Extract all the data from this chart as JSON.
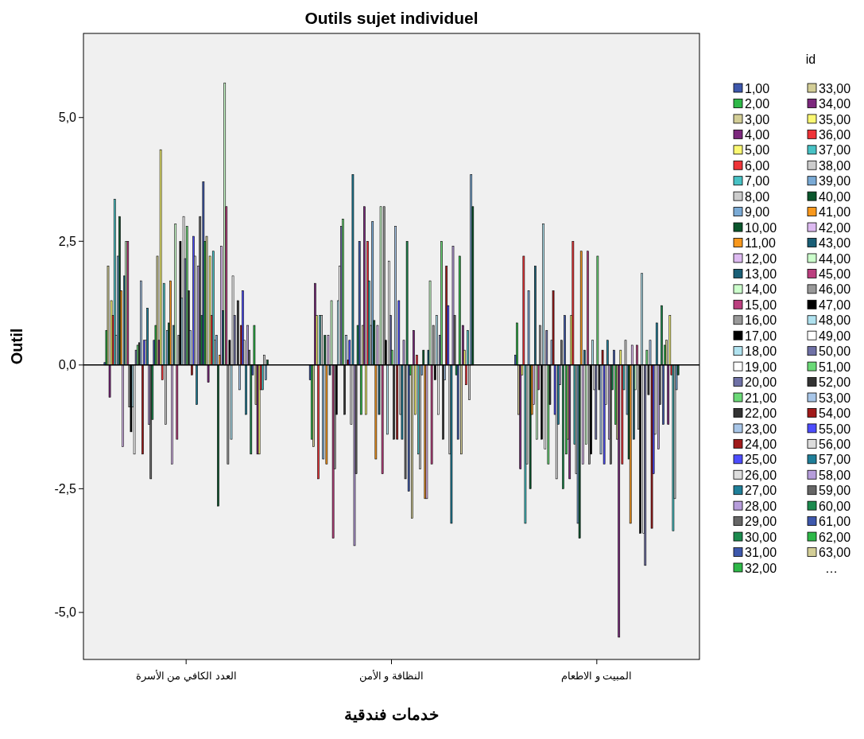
{
  "chart_data": {
    "type": "bar",
    "title": "Outils sujet individuel",
    "xlabel": "خدمات فندقية",
    "ylabel": "Outil",
    "legend_title": "id",
    "legend": "right",
    "annotations": [
      "…"
    ],
    "categories": [
      "العدد الكافي من الأسرة",
      "النظافة و الأمن",
      "المبيت و الاطعام"
    ],
    "ylim": [
      -5.95,
      6.7
    ],
    "yticks": [
      {
        "value": -5,
        "label": "-5,0"
      },
      {
        "value": -2.5,
        "label": "-2,5"
      },
      {
        "value": 0,
        "label": "0,0"
      },
      {
        "value": 2.5,
        "label": "2,5"
      },
      {
        "value": 5,
        "label": "5,0"
      }
    ],
    "series": [
      {
        "name": "1,00",
        "color": "#3e58ac",
        "values": [
          0.05,
          -0.3,
          0.2
        ]
      },
      {
        "name": "2,00",
        "color": "#2eb848",
        "values": [
          0.7,
          -1.5,
          0.85
        ]
      },
      {
        "name": "3,00",
        "color": "#d3ce97",
        "values": [
          2.0,
          -1.65,
          -1.0
        ]
      },
      {
        "name": "4,00",
        "color": "#7c287d",
        "values": [
          -0.65,
          1.65,
          -2.1
        ]
      },
      {
        "name": "5,00",
        "color": "#fbf873",
        "values": [
          1.3,
          1.0,
          -0.2
        ]
      },
      {
        "name": "6,00",
        "color": "#ef3338",
        "values": [
          1.0,
          -2.3,
          2.2
        ]
      },
      {
        "name": "7,00",
        "color": "#48c2c5",
        "values": [
          3.35,
          1.0,
          -3.2
        ]
      },
      {
        "name": "8,00",
        "color": "#cccccc",
        "values": [
          0.6,
          1.0,
          -2.0
        ]
      },
      {
        "name": "9,00",
        "color": "#7aaad5",
        "values": [
          2.2,
          -1.9,
          1.5
        ]
      },
      {
        "name": "10,00",
        "color": "#0a562c",
        "values": [
          3.0,
          0.6,
          -2.5
        ]
      },
      {
        "name": "11,00",
        "color": "#f8981d",
        "values": [
          1.5,
          -2.0,
          -1.0
        ]
      },
      {
        "name": "12,00",
        "color": "#ddbaf1",
        "values": [
          -1.65,
          0.6,
          -0.8
        ]
      },
      {
        "name": "13,00",
        "color": "#1a5f76",
        "values": [
          1.8,
          -0.2,
          2.0
        ]
      },
      {
        "name": "14,00",
        "color": "#ccffcc",
        "values": [
          2.5,
          1.3,
          -1.5
        ]
      },
      {
        "name": "15,00",
        "color": "#bb3f7f",
        "values": [
          2.5,
          -3.5,
          -0.5
        ]
      },
      {
        "name": "16,00",
        "color": "#999999",
        "values": [
          -0.85,
          -2.1,
          0.8
        ]
      },
      {
        "name": "17,00",
        "color": "#000000",
        "values": [
          -1.35,
          -1.0,
          -1.5
        ]
      },
      {
        "name": "18,00",
        "color": "#b0e2ef",
        "values": [
          -0.85,
          1.3,
          2.85
        ]
      },
      {
        "name": "19,00",
        "color": "#ffffff",
        "values": [
          -1.8,
          2.0,
          -1.7
        ]
      },
      {
        "name": "20,00",
        "color": "#6f71a6",
        "values": [
          0.3,
          2.8,
          0.7
        ]
      },
      {
        "name": "21,00",
        "color": "#6bd977",
        "values": [
          0.4,
          2.95,
          -2.0
        ]
      },
      {
        "name": "22,00",
        "color": "#333333",
        "values": [
          0.45,
          -1.0,
          -0.8
        ]
      },
      {
        "name": "23,00",
        "color": "#a8c6e8",
        "values": [
          1.7,
          0.6,
          0.5
        ]
      },
      {
        "name": "24,00",
        "color": "#a01a1a",
        "values": [
          -1.8,
          0.1,
          1.5
        ]
      },
      {
        "name": "25,00",
        "color": "#4d4dff",
        "values": [
          0.5,
          0.5,
          -1.0
        ]
      },
      {
        "name": "26,00",
        "color": "#dddddd",
        "values": [
          0.5,
          -1.2,
          -2.3
        ]
      },
      {
        "name": "27,00",
        "color": "#1f7f99",
        "values": [
          1.15,
          3.85,
          -1.2
        ]
      },
      {
        "name": "28,00",
        "color": "#b69ddb",
        "values": [
          -1.2,
          -3.65,
          -0.4
        ]
      },
      {
        "name": "29,00",
        "color": "#666666",
        "values": [
          -2.3,
          -2.2,
          0.5
        ]
      },
      {
        "name": "30,00",
        "color": "#1b8a4e",
        "values": [
          -1.1,
          0.8,
          -2.5
        ]
      },
      {
        "name": "31,00",
        "color": "#3e58ac",
        "values": [
          0.5,
          2.5,
          1.0
        ]
      },
      {
        "name": "32,00",
        "color": "#2eb848",
        "values": [
          0.8,
          -1.0,
          -1.8
        ]
      },
      {
        "name": "33,00",
        "color": "#d3ce97",
        "values": [
          2.2,
          0.8,
          -1.5
        ]
      },
      {
        "name": "34,00",
        "color": "#7c287d",
        "values": [
          0.5,
          3.2,
          -2.3
        ]
      },
      {
        "name": "35,00",
        "color": "#fbf873",
        "values": [
          4.35,
          -1.0,
          1.0
        ]
      },
      {
        "name": "36,00",
        "color": "#ef3338",
        "values": [
          -0.3,
          2.5,
          2.5
        ]
      },
      {
        "name": "37,00",
        "color": "#48c2c5",
        "values": [
          1.65,
          1.7,
          -1.6
        ]
      },
      {
        "name": "38,00",
        "color": "#cccccc",
        "values": [
          -1.2,
          0.8,
          -2.2
        ]
      },
      {
        "name": "39,00",
        "color": "#7aaad5",
        "values": [
          0.7,
          2.9,
          -3.2
        ]
      },
      {
        "name": "40,00",
        "color": "#0a562c",
        "values": [
          0.85,
          0.9,
          -3.5
        ]
      },
      {
        "name": "41,00",
        "color": "#f8981d",
        "values": [
          1.7,
          -1.9,
          2.3
        ]
      },
      {
        "name": "42,00",
        "color": "#ddbaf1",
        "values": [
          -2.0,
          0.8,
          -2.0
        ]
      },
      {
        "name": "43,00",
        "color": "#1a5f76",
        "values": [
          0.8,
          -1.0,
          0.3
        ]
      },
      {
        "name": "44,00",
        "color": "#ccffcc",
        "values": [
          2.85,
          3.2,
          -1.6
        ]
      },
      {
        "name": "45,00",
        "color": "#bb3f7f",
        "values": [
          -1.5,
          -2.2,
          2.3
        ]
      },
      {
        "name": "46,00",
        "color": "#999999",
        "values": [
          0.6,
          3.2,
          -2.0
        ]
      },
      {
        "name": "47,00",
        "color": "#000000",
        "values": [
          2.5,
          0.5,
          -1.8
        ]
      },
      {
        "name": "48,00",
        "color": "#b0e2ef",
        "values": [
          1.35,
          -1.4,
          0.5
        ]
      },
      {
        "name": "49,00",
        "color": "#ffffff",
        "values": [
          3.0,
          2.1,
          -0.5
        ]
      },
      {
        "name": "50,00",
        "color": "#6f71a6",
        "values": [
          2.15,
          1.0,
          -1.5
        ]
      },
      {
        "name": "51,00",
        "color": "#6bd977",
        "values": [
          2.8,
          0.3,
          2.2
        ]
      },
      {
        "name": "52,00",
        "color": "#333333",
        "values": [
          1.5,
          -1.5,
          -0.5
        ]
      },
      {
        "name": "53,00",
        "color": "#a8c6e8",
        "values": [
          0.7,
          2.8,
          -1.8
        ]
      },
      {
        "name": "54,00",
        "color": "#a01a1a",
        "values": [
          -0.2,
          -1.5,
          0.3
        ]
      },
      {
        "name": "55,00",
        "color": "#4d4dff",
        "values": [
          2.6,
          1.3,
          -2.0
        ]
      },
      {
        "name": "56,00",
        "color": "#dddddd",
        "values": [
          2.2,
          -1.0,
          -0.8
        ]
      },
      {
        "name": "57,00",
        "color": "#1f7f99",
        "values": [
          -0.8,
          -1.5,
          0.5
        ]
      },
      {
        "name": "58,00",
        "color": "#b69ddb",
        "values": [
          2.0,
          0.5,
          -1.5
        ]
      },
      {
        "name": "59,00",
        "color": "#666666",
        "values": [
          3.0,
          -2.3,
          -2.0
        ]
      },
      {
        "name": "60,00",
        "color": "#1b8a4e",
        "values": [
          1.0,
          2.5,
          -0.5
        ]
      },
      {
        "name": "61,00",
        "color": "#3e58ac",
        "values": [
          3.7,
          -2.55,
          0.3
        ]
      },
      {
        "name": "62,00",
        "color": "#2eb848",
        "values": [
          2.5,
          -0.2,
          -1.2
        ]
      },
      {
        "name": "63,00",
        "color": "#d3ce97",
        "values": [
          2.6,
          -3.1,
          -1.5
        ]
      },
      {
        "color": "#7c287d",
        "values": [
          -0.35,
          0.7,
          -5.5
        ]
      },
      {
        "color": "#fbf873",
        "values": [
          2.2,
          -1.0,
          0.3
        ]
      },
      {
        "color": "#ef3338",
        "values": [
          1.0,
          0.2,
          -2.0
        ]
      },
      {
        "color": "#48c2c5",
        "values": [
          2.3,
          -1.8,
          -0.5
        ]
      },
      {
        "color": "#cccccc",
        "values": [
          0.5,
          -2.1,
          0.5
        ]
      },
      {
        "color": "#7aaad5",
        "values": [
          0.6,
          -0.2,
          -1.0
        ]
      },
      {
        "color": "#0a562c",
        "values": [
          -2.85,
          0.3,
          -1.9
        ]
      },
      {
        "color": "#f8981d",
        "values": [
          0.2,
          -2.7,
          -3.2
        ]
      },
      {
        "color": "#ddbaf1",
        "values": [
          2.4,
          -2.7,
          0.4
        ]
      },
      {
        "color": "#1a5f76",
        "values": [
          1.1,
          0.3,
          -1.5
        ]
      },
      {
        "color": "#ccffcc",
        "values": [
          5.7,
          1.7,
          -0.5
        ]
      },
      {
        "color": "#bb3f7f",
        "values": [
          3.2,
          -2.0,
          0.4
        ]
      },
      {
        "color": "#999999",
        "values": [
          -2.0,
          0.8,
          -1.3
        ]
      },
      {
        "color": "#000000",
        "values": [
          0.5,
          -0.3,
          -3.4
        ]
      },
      {
        "color": "#b0e2ef",
        "values": [
          -1.5,
          1.0,
          1.85
        ]
      },
      {
        "color": "#ffffff",
        "values": [
          1.8,
          -1.0,
          -3.4
        ]
      },
      {
        "color": "#6f71a6",
        "values": [
          1.0,
          0.6,
          -4.05
        ]
      },
      {
        "color": "#6bd977",
        "values": [
          null,
          2.5,
          0.3
        ]
      },
      {
        "color": "#333333",
        "values": [
          1.3,
          -1.5,
          -0.6
        ]
      },
      {
        "color": "#a8c6e8",
        "values": [
          -0.5,
          -0.3,
          0.5
        ]
      },
      {
        "color": "#a01a1a",
        "values": [
          0.8,
          2.0,
          -3.3
        ]
      },
      {
        "color": "#4d4dff",
        "values": [
          1.5,
          1.2,
          -2.2
        ]
      },
      {
        "color": "#dddddd",
        "values": [
          0.5,
          -1.8,
          -1.4
        ]
      },
      {
        "color": "#1f7f99",
        "values": [
          -1.0,
          -3.2,
          0.85
        ]
      },
      {
        "color": "#b69ddb",
        "values": [
          0.8,
          2.4,
          -1.7
        ]
      },
      {
        "color": "#666666",
        "values": [
          0.3,
          1.0,
          -0.8
        ]
      },
      {
        "color": "#1b8a4e",
        "values": [
          -1.8,
          -0.2,
          1.2
        ]
      },
      {
        "color": "#3e58ac",
        "values": [
          -0.2,
          -1.5,
          -1.2
        ]
      },
      {
        "color": "#2eb848",
        "values": [
          0.8,
          2.2,
          0.4
        ]
      },
      {
        "color": "#d3ce97",
        "values": [
          -0.8,
          -1.8,
          0.5
        ]
      },
      {
        "color": "#7c287d",
        "values": [
          -1.8,
          0.8,
          -1.2
        ]
      },
      {
        "color": "#fbf873",
        "values": [
          -1.8,
          0.3,
          1.0
        ]
      },
      {
        "color": "#ef3338",
        "values": [
          -0.5,
          -0.4,
          -0.2
        ]
      },
      {
        "color": "#48c2c5",
        "values": [
          -0.5,
          0.7,
          -3.35
        ]
      },
      {
        "color": "#cccccc",
        "values": [
          0.2,
          -0.7,
          -2.7
        ]
      },
      {
        "color": "#7aaad5",
        "values": [
          -0.3,
          3.85,
          -0.5
        ]
      },
      {
        "color": "#0a562c",
        "values": [
          0.1,
          3.2,
          -0.2
        ]
      }
    ]
  }
}
